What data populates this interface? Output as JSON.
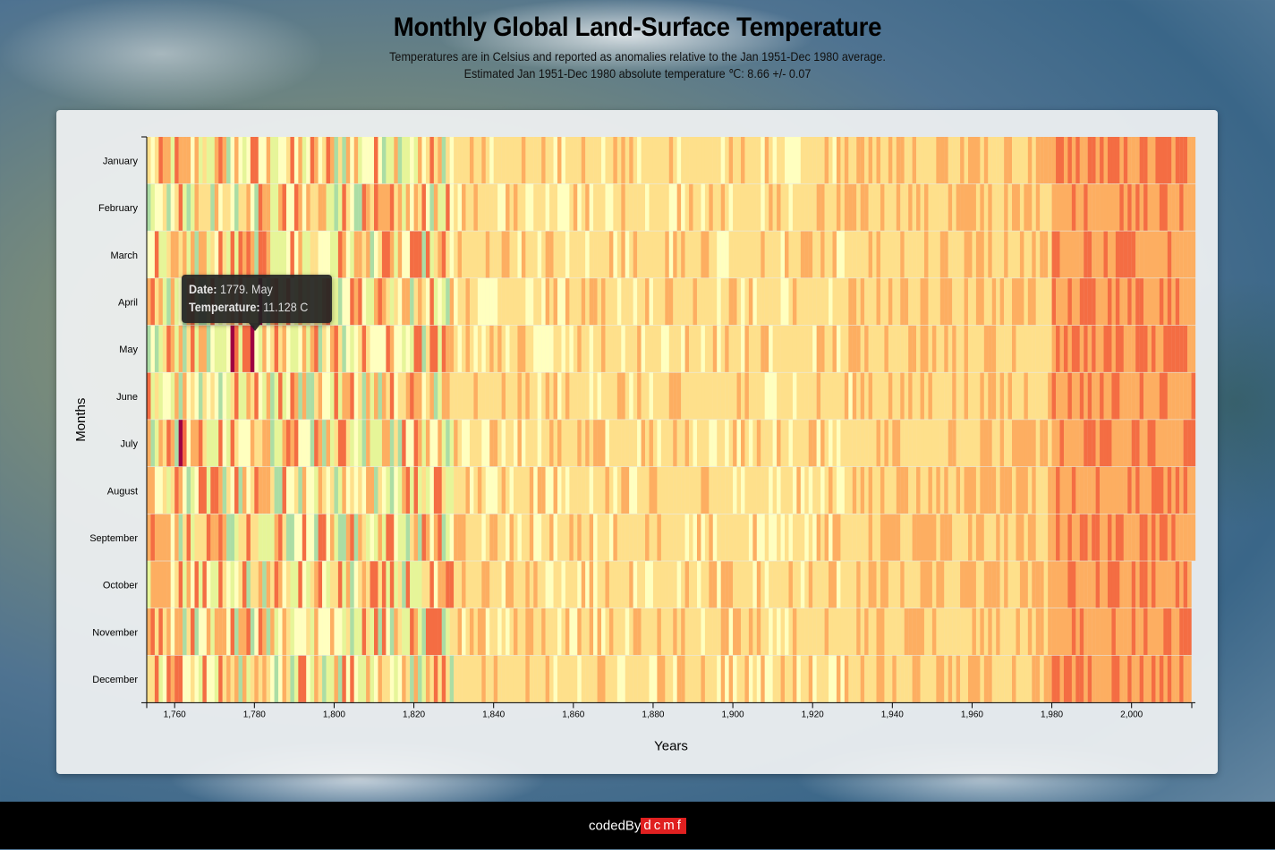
{
  "header": {
    "title": "Monthly Global Land-Surface Temperature",
    "subtitle_line1": "Temperatures are in Celsius and reported as anomalies relative to the Jan 1951-Dec 1980 average.",
    "subtitle_line2": "Estimated Jan 1951-Dec 1980 absolute temperature ℃: 8.66 +/- 0.07"
  },
  "tooltip": {
    "date_label": "Date:",
    "date_value": "1779. May",
    "temp_label": "Temperature:",
    "temp_value": "11.128 C"
  },
  "footer": {
    "label": "codedBy",
    "brand": "dcmf"
  },
  "colors": {
    "scale": [
      "#5e4fa2",
      "#3288bd",
      "#66c2a5",
      "#abdda4",
      "#e6f598",
      "#ffffbf",
      "#fee08b",
      "#fdae61",
      "#f46d43",
      "#d53e4f",
      "#9e0142"
    ]
  },
  "chart_data": {
    "type": "heatmap",
    "xlabel": "Years",
    "ylabel": "Months",
    "x_range": [
      1753,
      2015
    ],
    "x_ticks": [
      "1,760",
      "1,780",
      "1,800",
      "1,820",
      "1,840",
      "1,860",
      "1,880",
      "1,900",
      "1,920",
      "1,940",
      "1,960",
      "1,980",
      "2,000"
    ],
    "x_tick_values": [
      1760,
      1780,
      1800,
      1820,
      1840,
      1860,
      1880,
      1900,
      1920,
      1940,
      1960,
      1980,
      2000
    ],
    "months": [
      "January",
      "February",
      "March",
      "April",
      "May",
      "June",
      "July",
      "August",
      "September",
      "October",
      "November",
      "December"
    ],
    "color_meaning": "monthly temperature anomaly (°C) relative to Jan 1951-Dec 1980; purple/blue = colder, red = warmer",
    "highlighted": {
      "year": 1779,
      "month": "May",
      "temperature": 11.128
    },
    "series_description": "Monthly anomaly bands per year (1753-2015): strong variability before 1830, mostly near-zero 1840-1930, steady warming after 1980",
    "hot_cells": [
      {
        "year": 1779,
        "month": "May"
      },
      {
        "year": 1774,
        "month": "May"
      },
      {
        "year": 1761,
        "month": "July"
      },
      {
        "year": 1781,
        "month": "April"
      }
    ]
  }
}
